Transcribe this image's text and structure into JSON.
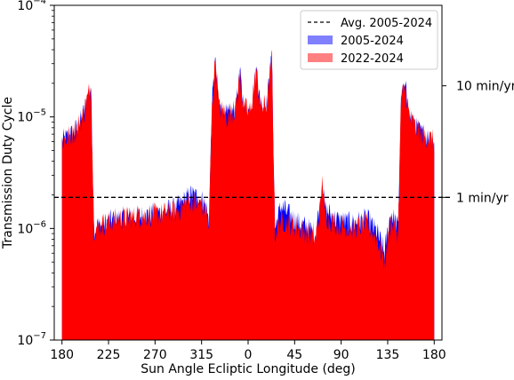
{
  "chart_data": {
    "type": "area",
    "xlabel": "Sun Angle Ecliptic Longitude (deg)",
    "ylabel": "Transmission Duty Cycle",
    "x_tick_labels": [
      "180",
      "225",
      "270",
      "315",
      "0",
      "45",
      "90",
      "135",
      "180"
    ],
    "x_tick_values": [
      180,
      225,
      270,
      315,
      360,
      405,
      450,
      495,
      540
    ],
    "xlim": [
      172.5,
      547.5
    ],
    "yscale": "log",
    "ylim": [
      1e-07,
      0.0001
    ],
    "y_ticks": [
      {
        "value": 1e-07,
        "mantissa": "10",
        "exponent": "−7"
      },
      {
        "value": 1e-06,
        "mantissa": "10",
        "exponent": "−6"
      },
      {
        "value": 1e-05,
        "mantissa": "10",
        "exponent": "−5"
      },
      {
        "value": 0.0001,
        "mantissa": "10",
        "exponent": "−4"
      }
    ],
    "secondary_y_ticks": [
      {
        "value": 1.9e-06,
        "label": "1 min/yr"
      },
      {
        "value": 1.9e-05,
        "label": "10 min/yr"
      }
    ],
    "reference_line": {
      "name": "Avg. 2005-2024",
      "value": 1.9e-06,
      "style": "dashed",
      "color": "#000000"
    },
    "legend": {
      "position": "top-right",
      "entries": [
        {
          "label": "Avg. 2005-2024",
          "kind": "dashed-line",
          "color": "#000000"
        },
        {
          "label": "2005-2024",
          "kind": "patch",
          "color": "#8080ff"
        },
        {
          "label": "2022-2024",
          "kind": "patch",
          "color": "#ff8080"
        }
      ]
    },
    "series": [
      {
        "name": "2005-2024",
        "color": "#0000ff",
        "points": [
          [
            180,
            6e-06
          ],
          [
            185,
            6.5e-06
          ],
          [
            190,
            7e-06
          ],
          [
            195,
            8e-06
          ],
          [
            200,
            1e-05
          ],
          [
            204,
            1.4e-05
          ],
          [
            208,
            1.9e-05
          ],
          [
            211,
            1e-06
          ],
          [
            230,
            1.2e-06
          ],
          [
            260,
            1.3e-06
          ],
          [
            290,
            1.5e-06
          ],
          [
            305,
            2e-06
          ],
          [
            315,
            1.8e-06
          ],
          [
            320,
            1.5e-06
          ],
          [
            322,
            1.1e-06
          ],
          [
            325,
            1.2e-05
          ],
          [
            328,
            3.1e-05
          ],
          [
            332,
            1.2e-05
          ],
          [
            340,
            1e-05
          ],
          [
            348,
            1.2e-05
          ],
          [
            352,
            2.4e-05
          ],
          [
            356,
            1.2e-05
          ],
          [
            362,
            1.1e-05
          ],
          [
            368,
            2.6e-05
          ],
          [
            372,
            1.2e-05
          ],
          [
            378,
            1.3e-05
          ],
          [
            383,
            3.4e-05
          ],
          [
            386,
            1e-06
          ],
          [
            392,
            1.6e-06
          ],
          [
            400,
            1.3e-06
          ],
          [
            410,
            1.1e-06
          ],
          [
            418,
            1e-06
          ],
          [
            425,
            9e-07
          ],
          [
            430,
            1.8e-06
          ],
          [
            432,
            3e-06
          ],
          [
            434,
            1.5e-06
          ],
          [
            445,
            1.2e-06
          ],
          [
            460,
            1.1e-06
          ],
          [
            475,
            1.2e-06
          ],
          [
            485,
            9e-07
          ],
          [
            492,
            6e-07
          ],
          [
            498,
            1.4e-06
          ],
          [
            505,
            1e-06
          ],
          [
            508,
            1.5e-05
          ],
          [
            512,
            1.8e-05
          ],
          [
            516,
            1e-05
          ],
          [
            522,
            8e-06
          ],
          [
            528,
            7e-06
          ],
          [
            534,
            6.5e-06
          ],
          [
            540,
            6e-06
          ]
        ]
      },
      {
        "name": "2022-2024",
        "color": "#ff0000",
        "points": [
          [
            180,
            6e-06
          ],
          [
            185,
            6.5e-06
          ],
          [
            190,
            7e-06
          ],
          [
            195,
            8e-06
          ],
          [
            200,
            1e-05
          ],
          [
            204,
            1.4e-05
          ],
          [
            208,
            1.9e-05
          ],
          [
            211,
            1e-06
          ],
          [
            230,
            1.2e-06
          ],
          [
            260,
            1.3e-06
          ],
          [
            290,
            1.4e-06
          ],
          [
            305,
            1.8e-06
          ],
          [
            315,
            1.6e-06
          ],
          [
            320,
            1.4e-06
          ],
          [
            322,
            1e-06
          ],
          [
            325,
            1.2e-05
          ],
          [
            328,
            3.1e-05
          ],
          [
            332,
            1.2e-05
          ],
          [
            340,
            1e-05
          ],
          [
            348,
            1.2e-05
          ],
          [
            352,
            2.4e-05
          ],
          [
            356,
            1.2e-05
          ],
          [
            362,
            1.1e-05
          ],
          [
            368,
            2.6e-05
          ],
          [
            372,
            1.2e-05
          ],
          [
            378,
            1.3e-05
          ],
          [
            383,
            3.4e-05
          ],
          [
            386,
            9e-07
          ],
          [
            392,
            1.2e-06
          ],
          [
            400,
            1.1e-06
          ],
          [
            410,
            1e-06
          ],
          [
            418,
            9e-07
          ],
          [
            425,
            8e-07
          ],
          [
            430,
            1.5e-06
          ],
          [
            432,
            3e-06
          ],
          [
            434,
            1.3e-06
          ],
          [
            445,
            1.1e-06
          ],
          [
            460,
            1e-06
          ],
          [
            475,
            1.1e-06
          ],
          [
            485,
            8e-07
          ],
          [
            492,
            5e-07
          ],
          [
            498,
            1.2e-06
          ],
          [
            505,
            9e-07
          ],
          [
            508,
            1.5e-05
          ],
          [
            512,
            1.8e-05
          ],
          [
            516,
            1e-05
          ],
          [
            522,
            8e-06
          ],
          [
            528,
            7e-06
          ],
          [
            534,
            6.5e-06
          ],
          [
            540,
            6e-06
          ]
        ]
      }
    ]
  }
}
